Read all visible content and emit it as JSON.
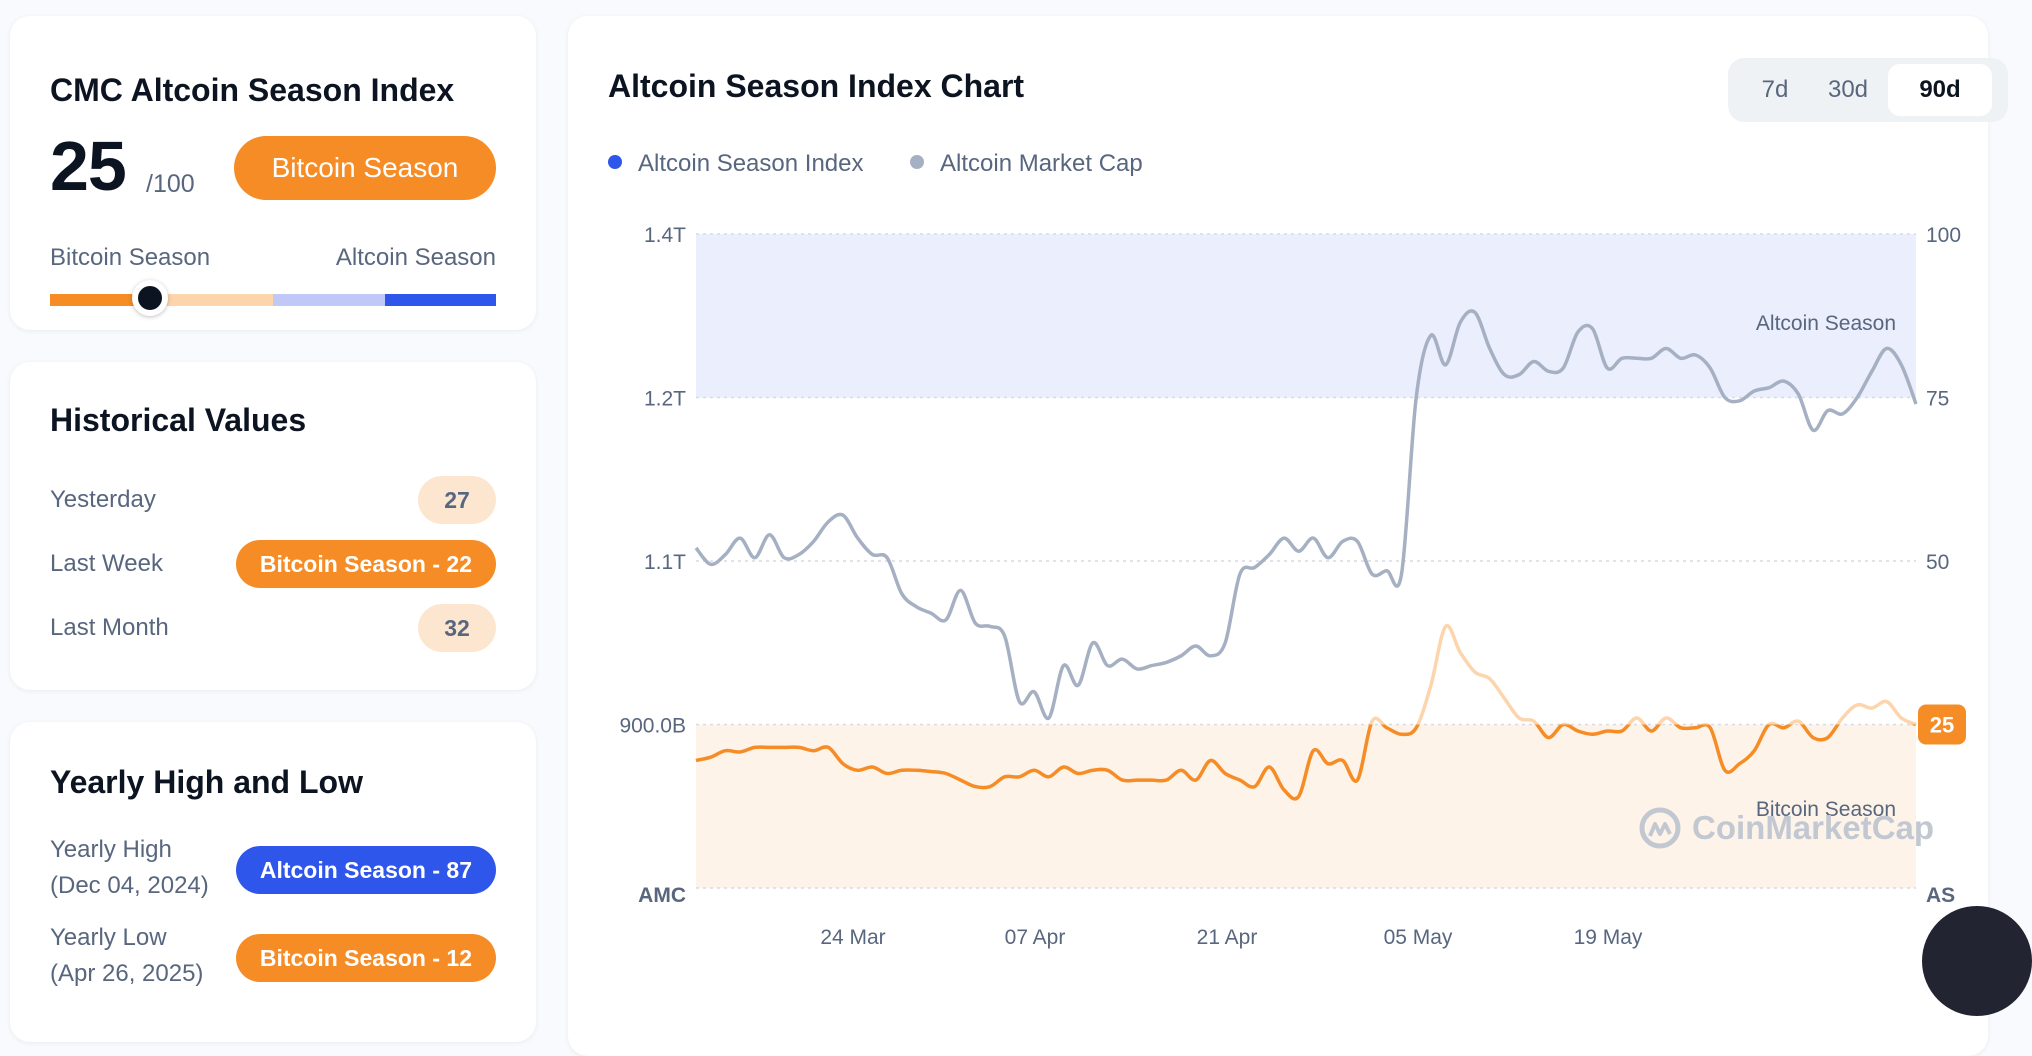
{
  "index_card": {
    "title": "CMC Altcoin Season Index",
    "value": "25",
    "suffix": "/100",
    "season_label": "Bitcoin Season",
    "range_left": "Bitcoin Season",
    "range_right": "Altcoin Season",
    "gauge_value": 25,
    "gauge_max": 100
  },
  "history": {
    "title": "Historical Values",
    "rows": [
      {
        "label": "Yesterday",
        "value": "27"
      },
      {
        "label": "Last Week",
        "value": "Bitcoin Season - 22"
      },
      {
        "label": "Last Month",
        "value": "32"
      }
    ]
  },
  "yearly": {
    "title": "Yearly High and Low",
    "high_label": "Yearly High",
    "high_date": "(Dec 04, 2024)",
    "high_value": "Altcoin Season - 87",
    "low_label": "Yearly Low",
    "low_date": "(Apr 26, 2025)",
    "low_value": "Bitcoin Season - 12"
  },
  "chart_card": {
    "title": "Altcoin Season Index Chart",
    "tabs": [
      {
        "label": "7d",
        "active": false
      },
      {
        "label": "30d",
        "active": false
      },
      {
        "label": "90d",
        "active": true
      }
    ],
    "watermark": "CoinMarketCap"
  },
  "colors": {
    "bitcoin": "#f68c25",
    "bitcoin_light": "#fdd5ac",
    "altcoin": "#2f56ea",
    "altcoin_light": "#bfc8f7",
    "market_cap": "#a6b0c3",
    "altcoin_band": "#eaeefd",
    "bitcoin_band": "#fdf3e8"
  },
  "chart_data": {
    "type": "line",
    "title": "Altcoin Season Index Chart",
    "x_ticks": [
      "24 Mar",
      "07 Apr",
      "21 Apr",
      "05 May",
      "19 May"
    ],
    "left_axis": {
      "label": "AMC",
      "ticks": [
        "1.4T",
        "1.2T",
        "1.1T",
        "900.0B"
      ]
    },
    "right_axis": {
      "label": "AS",
      "ticks": [
        "100",
        "75",
        "50",
        "25"
      ],
      "ylim": [
        0,
        100
      ]
    },
    "bands": [
      {
        "label": "Altcoin Season",
        "from": 75,
        "to": 100
      },
      {
        "label": "Bitcoin Season",
        "from": 0,
        "to": 25
      }
    ],
    "current_value": "25",
    "series": [
      {
        "name": "Altcoin Season Index",
        "values": [
          19.5,
          20.0,
          21.0,
          20.8,
          21.5,
          21.5,
          21.5,
          21.5,
          21.0,
          21.5,
          19.0,
          18.0,
          18.5,
          17.5,
          18.0,
          18.0,
          17.8,
          17.5,
          16.5,
          15.5,
          15.5,
          17.0,
          17.0,
          18.0,
          17.0,
          18.5,
          17.5,
          18.0,
          18.0,
          16.5,
          16.5,
          16.5,
          16.5,
          18.0,
          16.5,
          19.5,
          17.5,
          16.5,
          15.5,
          18.5,
          15.0,
          14.0,
          21.0,
          19.0,
          19.5,
          16.5,
          25.5,
          24.5,
          23.5,
          24.5,
          31.0,
          40.0,
          36.0,
          33.0,
          32.0,
          29.0,
          26.0,
          25.5,
          23.0,
          25.0,
          24.0,
          23.5,
          24.0,
          24.0,
          26.0,
          24.0,
          26.0,
          24.5,
          24.5,
          24.5,
          18.0,
          19.0,
          21.0,
          25.0,
          24.5,
          25.5,
          23.0,
          23.0,
          26.0,
          28.0,
          27.5,
          28.5,
          26.0,
          25.0
        ]
      },
      {
        "name": "Altcoin Market Cap",
        "values": [
          52.0,
          49.5,
          51.0,
          53.5,
          50.5,
          54.0,
          50.5,
          51.0,
          53.0,
          56.0,
          57.0,
          53.5,
          51.0,
          50.5,
          45.0,
          43.0,
          42.0,
          41.0,
          45.5,
          40.5,
          40.0,
          38.5,
          28.5,
          30.0,
          26.0,
          34.0,
          31.0,
          37.5,
          34.0,
          35.0,
          33.5,
          34.0,
          34.5,
          35.5,
          37.0,
          35.5,
          37.5,
          48.0,
          49.0,
          51.0,
          53.5,
          51.5,
          53.5,
          50.5,
          53.0,
          53.0,
          48.0,
          48.5,
          48.0,
          75.0,
          84.5,
          80.0,
          86.5,
          88.0,
          82.5,
          78.5,
          78.5,
          80.5,
          79.0,
          79.5,
          85.0,
          85.5,
          79.5,
          81.0,
          81.0,
          81.0,
          82.5,
          81.0,
          81.5,
          79.5,
          75.0,
          74.5,
          76.0,
          76.5,
          77.5,
          75.5,
          70.0,
          73.0,
          72.5,
          75.0,
          79.0,
          82.5,
          80.0,
          74.0
        ]
      }
    ]
  }
}
